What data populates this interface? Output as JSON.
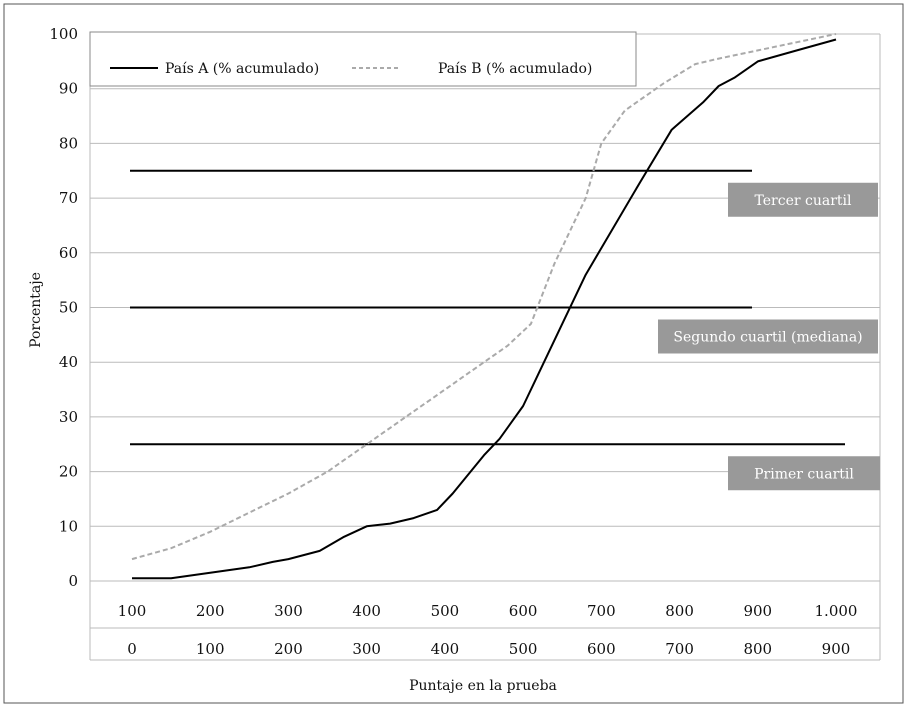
{
  "chart_data": {
    "type": "line",
    "xlabel": "Puntaje en la prueba",
    "ylabel": "Porcentaje",
    "ylim": [
      0,
      100
    ],
    "xlim": [
      100,
      1000
    ],
    "yticks": [
      "0",
      "10",
      "20",
      "30",
      "40",
      "50",
      "60",
      "70",
      "80",
      "90",
      "100"
    ],
    "xticks_row1": [
      "100",
      "200",
      "300",
      "400",
      "500",
      "600",
      "700",
      "800",
      "900",
      "1.000"
    ],
    "xticks_row2": [
      "0",
      "100",
      "200",
      "300",
      "400",
      "500",
      "600",
      "700",
      "800",
      "900"
    ],
    "grid": true,
    "legend": "top-left",
    "series": [
      {
        "name": "País A (% acumulado)",
        "style": "solid",
        "color": "#000000",
        "points": [
          [
            100,
            0.5
          ],
          [
            150,
            0.5
          ],
          [
            200,
            1.5
          ],
          [
            250,
            2.5
          ],
          [
            280,
            3.5
          ],
          [
            300,
            4
          ],
          [
            340,
            5.5
          ],
          [
            370,
            8
          ],
          [
            400,
            10
          ],
          [
            430,
            10.5
          ],
          [
            460,
            11.5
          ],
          [
            490,
            13
          ],
          [
            510,
            16
          ],
          [
            550,
            23
          ],
          [
            570,
            26
          ],
          [
            600,
            32
          ],
          [
            620,
            38
          ],
          [
            650,
            47
          ],
          [
            680,
            56
          ],
          [
            750,
            73
          ],
          [
            790,
            82.5
          ],
          [
            830,
            87.5
          ],
          [
            850,
            90.5
          ],
          [
            870,
            92
          ],
          [
            900,
            95
          ],
          [
            950,
            97
          ],
          [
            1000,
            99
          ]
        ]
      },
      {
        "name": "País B (% acumulado)",
        "style": "dashed",
        "color": "#aaaaaa",
        "points": [
          [
            100,
            4
          ],
          [
            150,
            6
          ],
          [
            200,
            9
          ],
          [
            250,
            12.5
          ],
          [
            300,
            16
          ],
          [
            350,
            20
          ],
          [
            400,
            25
          ],
          [
            450,
            30
          ],
          [
            500,
            35
          ],
          [
            550,
            40
          ],
          [
            580,
            43
          ],
          [
            610,
            47
          ],
          [
            640,
            58
          ],
          [
            680,
            70
          ],
          [
            700,
            80
          ],
          [
            730,
            86
          ],
          [
            780,
            91
          ],
          [
            820,
            94.5
          ],
          [
            850,
            95.5
          ],
          [
            900,
            97
          ],
          [
            950,
            98.5
          ],
          [
            1000,
            100
          ]
        ]
      }
    ],
    "reference_lines": [
      {
        "label": "Tercer cuartil",
        "value": 75,
        "x_end": 900
      },
      {
        "label": "Segundo cuartil (mediana)",
        "value": 50,
        "x_end": 900
      },
      {
        "label": "Primer cuartil",
        "value": 25,
        "x_end": 1000
      }
    ],
    "colors": {
      "quartile_label_bg": "#999999",
      "grid": "#bbbbbb",
      "frame": "#555555"
    }
  }
}
